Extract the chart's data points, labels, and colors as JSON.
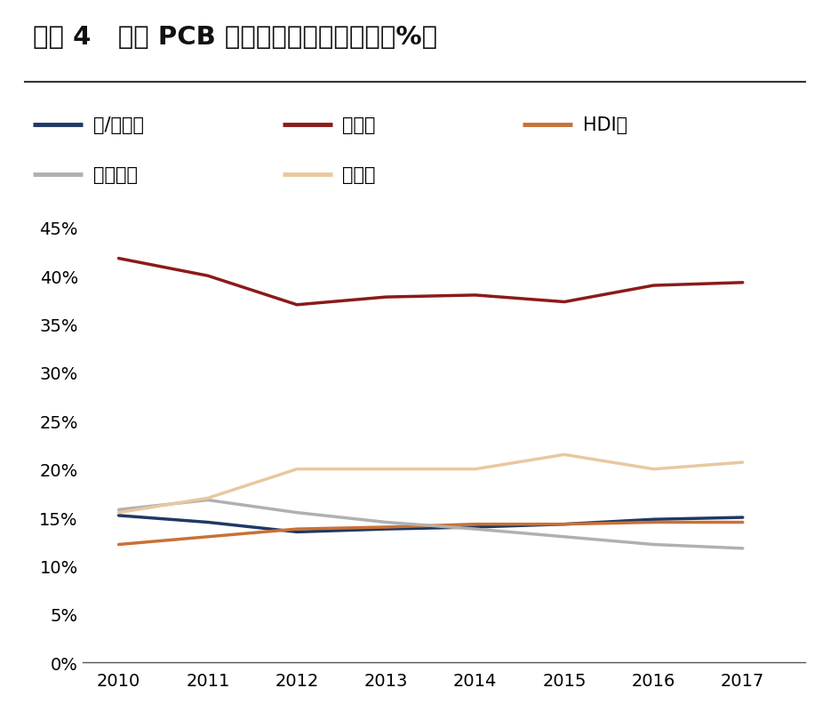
{
  "title": "图表 4   全球 PCB 产品结构占比变化情况（%）",
  "years": [
    2010,
    2011,
    2012,
    2013,
    2014,
    2015,
    2016,
    2017
  ],
  "series": [
    {
      "name": "单/双面板",
      "color": "#1f3864",
      "values": [
        0.152,
        0.145,
        0.135,
        0.138,
        0.14,
        0.143,
        0.148,
        0.15
      ]
    },
    {
      "name": "多层板",
      "color": "#8b1a1a",
      "values": [
        0.418,
        0.4,
        0.37,
        0.378,
        0.38,
        0.373,
        0.39,
        0.393
      ]
    },
    {
      "name": "HDI板",
      "color": "#c87137",
      "values": [
        0.122,
        0.13,
        0.138,
        0.14,
        0.143,
        0.143,
        0.145,
        0.145
      ]
    },
    {
      "name": "封装基板",
      "color": "#b0b0b0",
      "values": [
        0.158,
        0.168,
        0.155,
        0.145,
        0.138,
        0.13,
        0.122,
        0.118
      ]
    },
    {
      "name": "柔性板",
      "color": "#e8c8a0",
      "values": [
        0.155,
        0.17,
        0.2,
        0.2,
        0.2,
        0.215,
        0.2,
        0.207
      ]
    }
  ],
  "legend_row1": [
    "单/双面板",
    "多层板",
    "HDI板"
  ],
  "legend_row2": [
    "封装基板",
    "柔性板"
  ],
  "ylim": [
    0,
    0.475
  ],
  "yticks": [
    0,
    0.05,
    0.1,
    0.15,
    0.2,
    0.25,
    0.3,
    0.35,
    0.4,
    0.45
  ],
  "background_color": "#ffffff",
  "title_fontsize": 21,
  "legend_fontsize": 15,
  "tick_fontsize": 14,
  "line_width": 2.5
}
